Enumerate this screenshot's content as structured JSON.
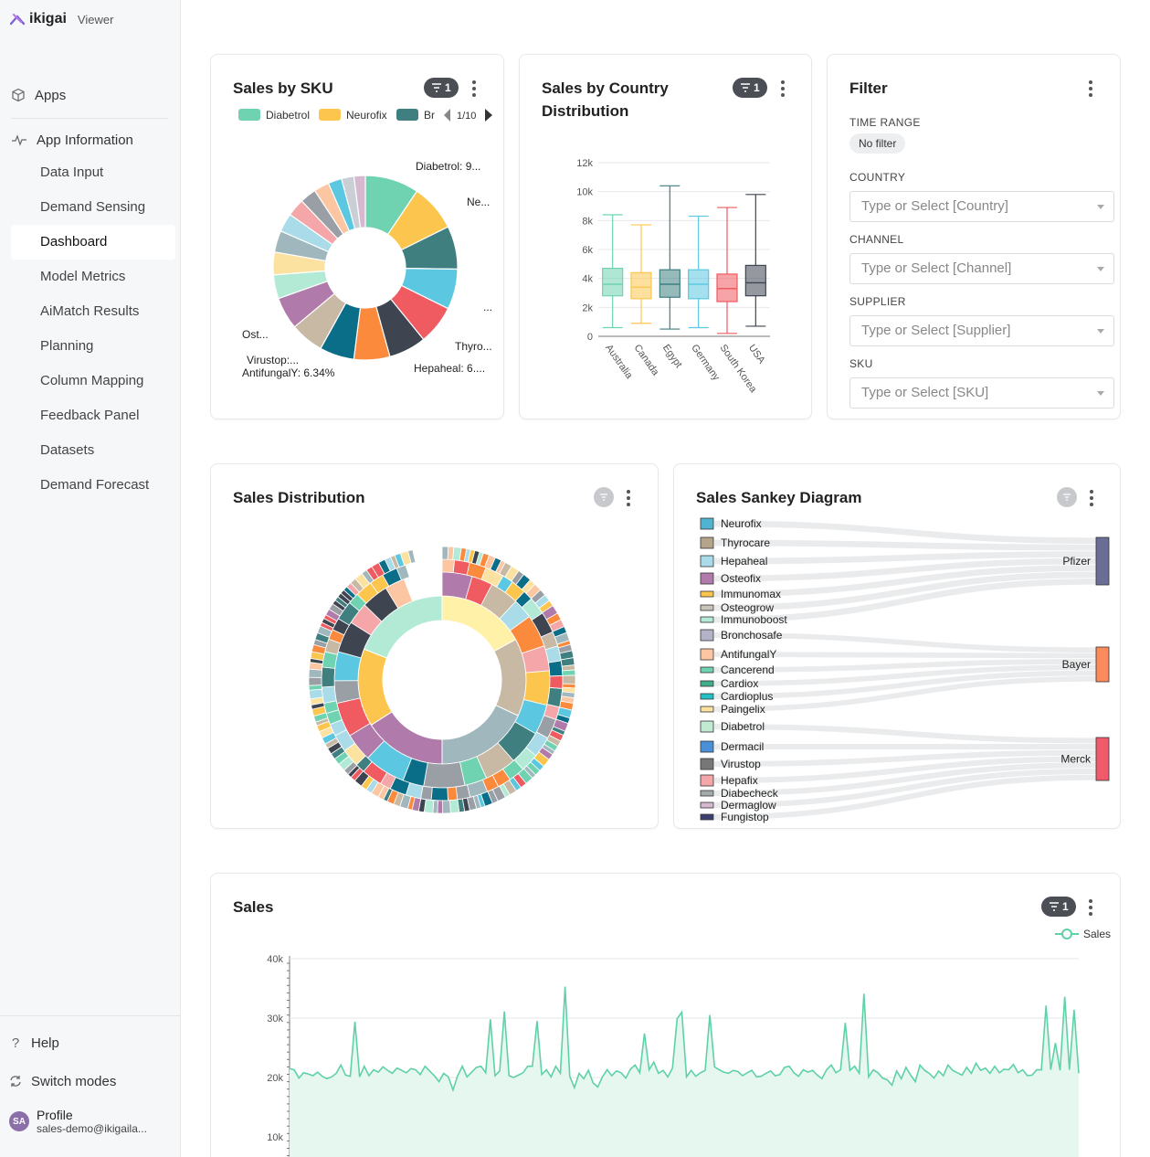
{
  "app": {
    "brand": "ikigai",
    "role": "Viewer"
  },
  "sidebar": {
    "apps_label": "Apps",
    "section_label": "App Information",
    "items": [
      "Data Input",
      "Demand Sensing",
      "Dashboard",
      "Model Metrics",
      "AiMatch Results",
      "Planning",
      "Column Mapping",
      "Feedback Panel",
      "Datasets",
      "Demand Forecast"
    ],
    "active_index": 2,
    "help_label": "Help",
    "switch_label": "Switch modes",
    "profile": {
      "initials": "SA",
      "name": "Profile",
      "email": "sales-demo@ikigaila..."
    }
  },
  "colors": {
    "teal": "#6fd3b1",
    "yellow": "#fcc64e",
    "darkteal": "#3f7f80",
    "sky": "#5bc7e0",
    "coral": "#f05a61",
    "slate": "#3e4450",
    "orange": "#fb8a3c",
    "petrol": "#0a6e88",
    "taupe": "#c7b9a4",
    "violet": "#b07aaa",
    "mint": "#b3ead6",
    "cream": "#fce2a0",
    "grayblue": "#9fb7bd",
    "pink": "#f5a6a9",
    "lightblue": "#a9dce8",
    "peach": "#fbc6a1",
    "gray": "#999fa5",
    "line_green": "#5fd1a7",
    "area_green": "#e6f7ef"
  },
  "sku_card": {
    "title": "Sales by SKU",
    "badge": "1",
    "legend": [
      "Diabetrol",
      "Neurofix",
      "Br"
    ],
    "pager": "1/10",
    "labels": [
      "Diabetrol: 9...",
      "Ne...",
      "...",
      "Thyro...",
      "Hepaheal: 6....",
      "Virustop:...",
      "AntifungalY: 6.34%",
      "Ost..."
    ]
  },
  "sku_chart": {
    "type": "pie",
    "slices": [
      {
        "label": "Diabetrol",
        "value": 9.5,
        "color": "#6fd3b1"
      },
      {
        "label": "Neurofix",
        "value": 8.3,
        "color": "#fcc64e"
      },
      {
        "label": "Br",
        "value": 7.6,
        "color": "#3f7f80"
      },
      {
        "label": "",
        "value": 7.1,
        "color": "#5bc7e0"
      },
      {
        "label": "Thyro...",
        "value": 6.9,
        "color": "#f05a61"
      },
      {
        "label": "Hepaheal",
        "value": 6.6,
        "color": "#3e4450"
      },
      {
        "label": "AntifungalY",
        "value": 6.34,
        "color": "#fb8a3c"
      },
      {
        "label": "Virustop",
        "value": 6.1,
        "color": "#0a6e88"
      },
      {
        "label": "",
        "value": 5.9,
        "color": "#c7b9a4"
      },
      {
        "label": "Ost...",
        "value": 5.7,
        "color": "#b07aaa"
      },
      {
        "label": "",
        "value": 4.2,
        "color": "#b3ead6"
      },
      {
        "label": "",
        "value": 4.0,
        "color": "#fce2a0"
      },
      {
        "label": "",
        "value": 3.8,
        "color": "#9fb7bd"
      },
      {
        "label": "",
        "value": 3.3,
        "color": "#a9dce8"
      },
      {
        "label": "",
        "value": 3.1,
        "color": "#f5a6a9"
      },
      {
        "label": "",
        "value": 2.9,
        "color": "#999fa5"
      },
      {
        "label": "",
        "value": 2.7,
        "color": "#fbc6a1"
      },
      {
        "label": "",
        "value": 2.4,
        "color": "#5bc7e0"
      },
      {
        "label": "",
        "value": 2.2,
        "color": "#c9cfd4"
      },
      {
        "label": "",
        "value": 2.0,
        "color": "#d6b8d1"
      }
    ]
  },
  "country_card": {
    "title_line1": "Sales by Country",
    "title_line2": "Distribution",
    "badge": "1"
  },
  "country_chart": {
    "type": "boxplot",
    "yticks": [
      "0",
      "2k",
      "4k",
      "6k",
      "8k",
      "10k",
      "12k"
    ],
    "ylim": [
      0,
      12000
    ],
    "categories": [
      "Australia",
      "Canada",
      "Egypt",
      "Germany",
      "South Korea",
      "USA"
    ],
    "boxes": [
      {
        "min": 600,
        "q1": 2800,
        "median": 3600,
        "q3": 4700,
        "max": 8400,
        "color": "#6fd3b1"
      },
      {
        "min": 900,
        "q1": 2600,
        "median": 3400,
        "q3": 4400,
        "max": 7700,
        "color": "#fcc64e"
      },
      {
        "min": 500,
        "q1": 2700,
        "median": 3600,
        "q3": 4600,
        "max": 10400,
        "color": "#3f7f80"
      },
      {
        "min": 600,
        "q1": 2600,
        "median": 3600,
        "q3": 4600,
        "max": 8300,
        "color": "#5bc7e0"
      },
      {
        "min": 200,
        "q1": 2400,
        "median": 3300,
        "q3": 4300,
        "max": 8900,
        "color": "#f05a61"
      },
      {
        "min": 700,
        "q1": 2800,
        "median": 3700,
        "q3": 4900,
        "max": 9800,
        "color": "#3e4450"
      }
    ]
  },
  "filter_card": {
    "title": "Filter",
    "time_range_label": "TIME RANGE",
    "time_range_value": "No filter",
    "country_label": "COUNTRY",
    "country_placeholder": "Type or Select [Country]",
    "channel_label": "CHANNEL",
    "channel_placeholder": "Type or Select [Channel]",
    "supplier_label": "SUPPLIER",
    "supplier_placeholder": "Type or Select [Supplier]",
    "sku_label": "SKU",
    "sku_placeholder": "Type or Select [SKU]"
  },
  "distribution_card": {
    "title": "Sales Distribution"
  },
  "distribution_chart": {
    "type": "sunburst",
    "inner": [
      {
        "value": 17,
        "color": "#fff2a8"
      },
      {
        "value": 15,
        "color": "#c7b9a4"
      },
      {
        "value": 18,
        "color": "#9fb7bd"
      },
      {
        "value": 16,
        "color": "#b07aaa"
      },
      {
        "value": 15,
        "color": "#fcc64e"
      },
      {
        "value": 19,
        "color": "#b3ead6"
      }
    ]
  },
  "sankey_card": {
    "title": "Sales Sankey Diagram"
  },
  "sankey_chart": {
    "type": "sankey",
    "sources": [
      {
        "name": "Neurofix",
        "color": "#4fb3d1",
        "target": 0
      },
      {
        "name": "Thyrocare",
        "color": "#b5a48c",
        "target": 0
      },
      {
        "name": "Hepaheal",
        "color": "#a9dce8",
        "target": 0
      },
      {
        "name": "Osteofix",
        "color": "#b07aaa",
        "target": 0
      },
      {
        "name": "Immunomax",
        "color": "#fcc64e",
        "target": 0
      },
      {
        "name": "Osteogrow",
        "color": "#c9c2b8",
        "target": 0
      },
      {
        "name": "Immunoboost",
        "color": "#b3ead6",
        "target": 0
      },
      {
        "name": "Bronchosafe",
        "color": "#b3b3c7",
        "target": 1
      },
      {
        "name": "AntifungalY",
        "color": "#fbc6a1",
        "target": 1
      },
      {
        "name": "Cancerend",
        "color": "#6fd3b1",
        "target": 1
      },
      {
        "name": "Cardiox",
        "color": "#3fae8c",
        "target": 1
      },
      {
        "name": "Cardioplus",
        "color": "#22c2c7",
        "target": 1
      },
      {
        "name": "Paingelix",
        "color": "#fce2a0",
        "target": 1
      },
      {
        "name": "Diabetrol",
        "color": "#c1ead3",
        "target": 2
      },
      {
        "name": "Dermacil",
        "color": "#4a90d9",
        "target": 2
      },
      {
        "name": "Virustop",
        "color": "#777777",
        "target": 2
      },
      {
        "name": "Hepafix",
        "color": "#f5a6a9",
        "target": 2
      },
      {
        "name": "Diabecheck",
        "color": "#a4a9a9",
        "target": 2
      },
      {
        "name": "Dermaglow",
        "color": "#d6b8d1",
        "target": 2
      },
      {
        "name": "Fungistop",
        "color": "#3d3f73",
        "target": 2
      }
    ],
    "targets": [
      {
        "name": "Pfizer",
        "color": "#6a6e96"
      },
      {
        "name": "Bayer",
        "color": "#fb8a5c"
      },
      {
        "name": "Merck",
        "color": "#f05a6a"
      }
    ]
  },
  "sales_card": {
    "title": "Sales",
    "badge": "1",
    "legend": "Sales"
  },
  "sales_chart": {
    "type": "area",
    "yticks": [
      "10k",
      "20k",
      "30k",
      "40k"
    ],
    "ylim": [
      5000,
      40000
    ],
    "values": [
      21500,
      21300,
      19900,
      20800,
      20600,
      20300,
      20900,
      20200,
      19800,
      20100,
      20700,
      22100,
      20400,
      20200,
      29400,
      20100,
      21900,
      20300,
      21300,
      20900,
      21800,
      21200,
      20700,
      21600,
      21200,
      20800,
      21500,
      21300,
      20500,
      21900,
      21100,
      20300,
      19300,
      20700,
      20100,
      17900,
      20300,
      21900,
      20100,
      20900,
      21700,
      21900,
      20800,
      29800,
      20300,
      21100,
      31100,
      20300,
      20000,
      20400,
      20800,
      21900,
      21900,
      29500,
      20500,
      21300,
      20100,
      21900,
      20700,
      35300,
      20200,
      18300,
      20700,
      19800,
      21200,
      19100,
      18400,
      20100,
      21300,
      20300,
      21100,
      20800,
      19900,
      21400,
      22100,
      20800,
      27400,
      21300,
      22600,
      20700,
      21200,
      20100,
      21600,
      29900,
      31000,
      20100,
      21200,
      20200,
      20800,
      21200,
      30500,
      21800,
      21300,
      20900,
      20700,
      21200,
      21000,
      20300,
      20800,
      21200,
      20100,
      20200,
      20700,
      21100,
      20300,
      20500,
      21700,
      21900,
      20800,
      20200,
      21300,
      20900,
      21200,
      20400,
      19800,
      21300,
      22100,
      20800,
      21300,
      29200,
      21200,
      21900,
      20700,
      34100,
      20100,
      21300,
      20800,
      19900,
      19600,
      18700,
      21100,
      19800,
      21700,
      20400,
      19300,
      22100,
      21200,
      20700,
      19900,
      21100,
      20300,
      22100,
      21200,
      20800,
      20400,
      21700,
      20700,
      22400,
      21200,
      21600,
      20700,
      21900,
      20800,
      21400,
      21300,
      22200,
      20800,
      21300,
      20300,
      20400,
      21300,
      21300,
      32100,
      21300,
      25800,
      21200,
      33600,
      21300,
      31400,
      20700
    ]
  }
}
